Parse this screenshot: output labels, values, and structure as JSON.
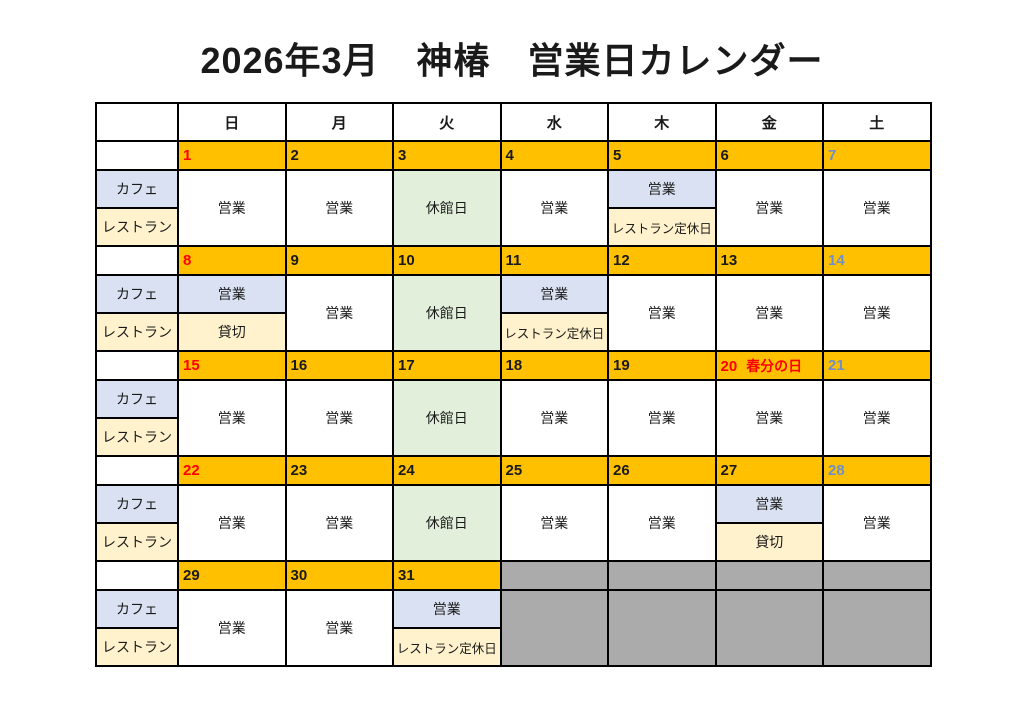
{
  "page": {
    "title": "2026年3月　神椿　営業日カレンダー"
  },
  "colors": {
    "date_row_bg": "#FFC000",
    "cafe_bg": "#D9E1F2",
    "restaurant_bg": "#FFF2CC",
    "closed_day_bg": "#E2EFDA",
    "out_of_month_bg": "#ABABAB",
    "sunday_red": "#FF0000",
    "saturday_header_blue": "#4472C4",
    "saturday_date_blue": "#6E8FC9",
    "border": "#000000"
  },
  "table": {
    "day_headers": [
      {
        "label": "日",
        "color": "red"
      },
      {
        "label": "月",
        "color": "black"
      },
      {
        "label": "火",
        "color": "black"
      },
      {
        "label": "水",
        "color": "black"
      },
      {
        "label": "木",
        "color": "black"
      },
      {
        "label": "金",
        "color": "black"
      },
      {
        "label": "土",
        "color": "satblue"
      }
    ],
    "row_labels": {
      "cafe": "カフェ",
      "restaurant": "レストラン"
    },
    "weeks": [
      {
        "dates": [
          {
            "n": "1",
            "c": "red"
          },
          {
            "n": "2"
          },
          {
            "n": "3"
          },
          {
            "n": "4"
          },
          {
            "n": "5"
          },
          {
            "n": "6"
          },
          {
            "n": "7",
            "c": "blue"
          }
        ],
        "cells": [
          {
            "t": "営業"
          },
          {
            "t": "営業"
          },
          {
            "t": "休館日",
            "bg": "green"
          },
          {
            "t": "営業"
          },
          {
            "cafe": "営業",
            "rest": "レストラン定休日"
          },
          {
            "t": "営業"
          },
          {
            "t": "営業"
          }
        ]
      },
      {
        "dates": [
          {
            "n": "8",
            "c": "red"
          },
          {
            "n": "9"
          },
          {
            "n": "10"
          },
          {
            "n": "11"
          },
          {
            "n": "12"
          },
          {
            "n": "13"
          },
          {
            "n": "14",
            "c": "blue"
          }
        ],
        "cells": [
          {
            "cafe": "営業",
            "rest": "貸切"
          },
          {
            "t": "営業"
          },
          {
            "t": "休館日",
            "bg": "green"
          },
          {
            "cafe": "営業",
            "rest": "レストラン定休日"
          },
          {
            "t": "営業"
          },
          {
            "t": "営業"
          },
          {
            "t": "営業"
          }
        ]
      },
      {
        "dates": [
          {
            "n": "15",
            "c": "red"
          },
          {
            "n": "16"
          },
          {
            "n": "17"
          },
          {
            "n": "18"
          },
          {
            "n": "19"
          },
          {
            "n": "20",
            "c": "red",
            "holiday": "春分の日"
          },
          {
            "n": "21",
            "c": "blue"
          }
        ],
        "cells": [
          {
            "t": "営業"
          },
          {
            "t": "営業"
          },
          {
            "t": "休館日",
            "bg": "green"
          },
          {
            "t": "営業"
          },
          {
            "t": "営業"
          },
          {
            "t": "営業"
          },
          {
            "t": "営業"
          }
        ]
      },
      {
        "dates": [
          {
            "n": "22",
            "c": "red"
          },
          {
            "n": "23"
          },
          {
            "n": "24"
          },
          {
            "n": "25"
          },
          {
            "n": "26"
          },
          {
            "n": "27"
          },
          {
            "n": "28",
            "c": "blue"
          }
        ],
        "cells": [
          {
            "t": "営業"
          },
          {
            "t": "営業"
          },
          {
            "t": "休館日",
            "bg": "green"
          },
          {
            "t": "営業"
          },
          {
            "t": "営業"
          },
          {
            "cafe": "営業",
            "rest": "貸切"
          },
          {
            "t": "営業"
          }
        ]
      },
      {
        "dates": [
          {
            "n": "29"
          },
          {
            "n": "30"
          },
          {
            "n": "31"
          },
          {
            "gray": true
          },
          {
            "gray": true
          },
          {
            "gray": true
          },
          {
            "gray": true
          }
        ],
        "cells": [
          {
            "t": "営業"
          },
          {
            "t": "営業"
          },
          {
            "cafe": "営業",
            "rest": "レストラン定休日"
          },
          {
            "gray": true
          },
          {
            "gray": true
          },
          {
            "gray": true
          },
          {
            "gray": true
          }
        ]
      }
    ]
  }
}
